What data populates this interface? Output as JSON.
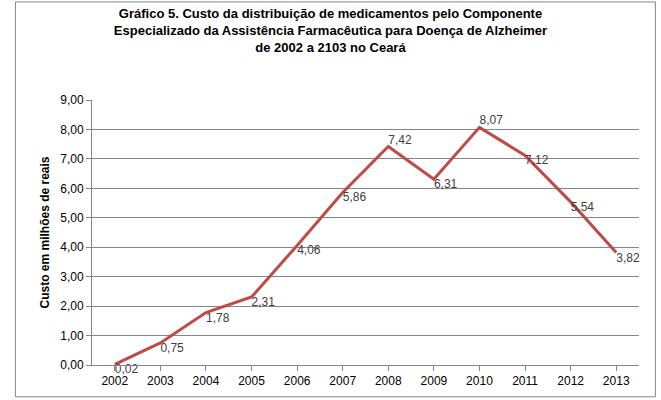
{
  "chart_data": {
    "type": "line",
    "title": "Gráfico 5. Custo da distribuição de medicamentos pelo Componente\nEspecializado da Assistência Farmacêutica para Doença de Alzheimer\nde 2002 a 2103 no Ceará",
    "y_label": "Custo em milhões de reais",
    "categories": [
      "2002",
      "2003",
      "2004",
      "2005",
      "2006",
      "2007",
      "2008",
      "2009",
      "2010",
      "2011",
      "2012",
      "2013"
    ],
    "values": [
      0.02,
      0.75,
      1.78,
      2.31,
      4.06,
      5.86,
      7.42,
      6.31,
      8.07,
      7.12,
      5.54,
      3.82
    ],
    "value_labels": [
      "0,02",
      "0,75",
      "1,78",
      "2,31",
      "4,06",
      "5,86",
      "7,42",
      "6,31",
      "8,07",
      "7,12",
      "5,54",
      "3,82"
    ],
    "color": "#be4b48",
    "ylim": [
      0,
      9
    ],
    "yticks": [
      {
        "value": 0,
        "label": "0,00"
      },
      {
        "value": 1,
        "label": "1,00"
      },
      {
        "value": 2,
        "label": "2,00"
      },
      {
        "value": 3,
        "label": "3,00"
      },
      {
        "value": 4,
        "label": "4,00"
      },
      {
        "value": 5,
        "label": "5,00"
      },
      {
        "value": 6,
        "label": "6,00"
      },
      {
        "value": 7,
        "label": "7,00"
      },
      {
        "value": 8,
        "label": "8,00"
      },
      {
        "value": 9,
        "label": "9,00"
      }
    ],
    "grid": true,
    "data_labels": true
  }
}
